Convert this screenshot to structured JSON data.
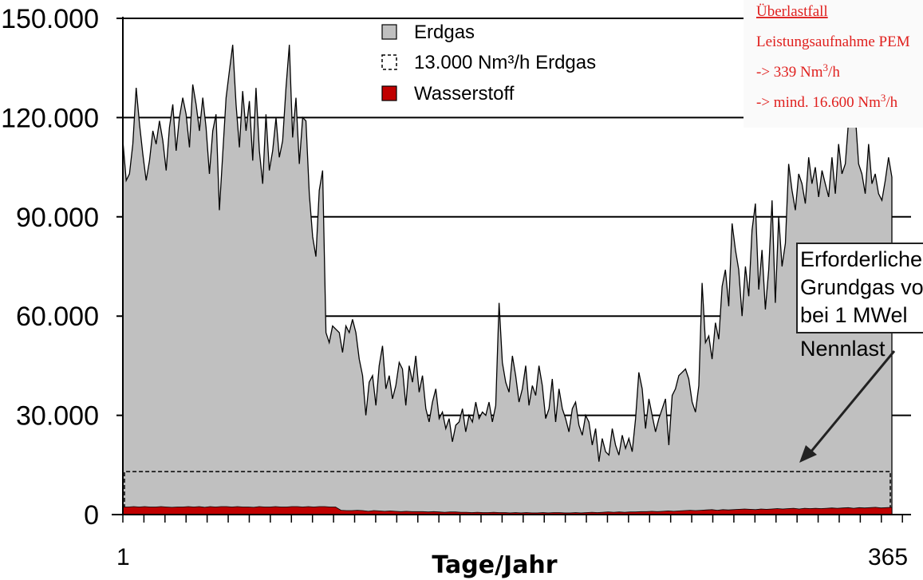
{
  "chart_data": {
    "type": "area",
    "xlabel": "Tage/Jahr",
    "x_ticks": [
      "1",
      "365"
    ],
    "x_range": [
      1,
      365
    ],
    "y_ticks": [
      "0",
      "30.000",
      "60.000",
      "90.000",
      "120.000",
      "150.000"
    ],
    "ylim": [
      0,
      150000
    ],
    "grid": "horizontal",
    "legend_position": "top-center",
    "series": [
      {
        "name": "Erdgas",
        "style": "gray-area",
        "color": "#c0c0c0",
        "values": [
          113000,
          101000,
          103000,
          112000,
          129000,
          118000,
          109000,
          101000,
          107000,
          116000,
          112000,
          119000,
          113000,
          104000,
          117000,
          124000,
          110000,
          120000,
          126000,
          121000,
          111000,
          130000,
          124000,
          116000,
          126000,
          117000,
          103000,
          116000,
          121000,
          92000,
          109000,
          126000,
          134000,
          142000,
          124000,
          111000,
          128000,
          116000,
          125000,
          107000,
          129000,
          110000,
          100000,
          121000,
          104000,
          110000,
          120000,
          108000,
          113000,
          129000,
          142000,
          114000,
          126000,
          106000,
          120000,
          119000,
          97000,
          84000,
          78000,
          98000,
          104000,
          55000,
          52000,
          57000,
          56000,
          55000,
          49000,
          57000,
          55000,
          59000,
          55000,
          47000,
          42000,
          30000,
          40000,
          42000,
          33000,
          45000,
          51000,
          38000,
          42000,
          35000,
          39000,
          46000,
          44000,
          33000,
          45000,
          40000,
          48000,
          37000,
          42000,
          32000,
          28000,
          34000,
          38000,
          29000,
          31000,
          26000,
          29000,
          22000,
          27000,
          28000,
          32000,
          25000,
          30000,
          28000,
          34000,
          29000,
          31000,
          30000,
          34000,
          28000,
          33000,
          64000,
          46000,
          40000,
          37000,
          48000,
          42000,
          34000,
          38000,
          45000,
          33000,
          39000,
          36000,
          45000,
          39000,
          29000,
          32000,
          41000,
          28000,
          38000,
          32000,
          29000,
          25000,
          32000,
          34000,
          27000,
          24000,
          30000,
          28000,
          21000,
          26000,
          16000,
          23000,
          19000,
          18000,
          26000,
          21000,
          18000,
          24000,
          20000,
          23000,
          19000,
          29000,
          43000,
          38000,
          26000,
          35000,
          30000,
          25000,
          29000,
          32000,
          35000,
          21000,
          36000,
          38000,
          42000,
          43000,
          44000,
          41000,
          34000,
          31000,
          39000,
          70000,
          52000,
          54000,
          47000,
          58000,
          53000,
          69000,
          74000,
          63000,
          88000,
          80000,
          74000,
          60000,
          75000,
          66000,
          86000,
          94000,
          68000,
          80000,
          62000,
          74000,
          95000,
          64000,
          90000,
          75000,
          82000,
          106000,
          98000,
          92000,
          103000,
          100000,
          94000,
          108000,
          100000,
          105000,
          96000,
          104000,
          100000,
          96000,
          108000,
          97000,
          112000,
          103000,
          106000,
          119000,
          118000,
          121000,
          106000,
          103000,
          97000,
          112000,
          100000,
          103000,
          97000,
          95000,
          101000,
          108000,
          102000
        ]
      },
      {
        "name": "13.000 Nm³/h Erdgas",
        "style": "dashed-line",
        "value": 13000
      },
      {
        "name": "Wasserstoff",
        "style": "red-area",
        "color": "#c00000",
        "values": [
          2300,
          2300,
          2400,
          2300,
          2400,
          2300,
          2300,
          2400,
          2300,
          2200,
          2300,
          2300,
          2400,
          2300,
          2400,
          2200,
          2400,
          2300,
          2400,
          2400,
          2300,
          2400,
          2300,
          2300,
          2200,
          2400,
          2300,
          2300,
          2400,
          2300,
          2300,
          2400,
          2400,
          2300,
          2400,
          2300,
          2400,
          2400,
          2300,
          2300,
          1300,
          1200,
          1200,
          1300,
          1200,
          1000,
          1200,
          1100,
          1000,
          1100,
          1000,
          900,
          1000,
          900,
          900,
          900,
          800,
          900,
          800,
          700,
          800,
          800,
          700,
          700,
          600,
          700,
          600,
          600,
          700,
          600,
          600,
          500,
          600,
          500,
          600,
          500,
          500,
          600,
          500,
          600,
          600,
          500,
          500,
          600,
          500,
          600,
          700,
          600,
          700,
          800,
          700,
          800,
          700,
          800,
          800,
          900,
          900,
          1000,
          900,
          1000,
          1100,
          1000,
          1100,
          1200,
          1300,
          1200,
          1300,
          1400,
          1500,
          1300,
          1500,
          1400,
          1500,
          1600,
          1700,
          1600,
          1500,
          1700,
          1600,
          1700,
          1800,
          1700,
          1800,
          1900,
          1700,
          1900,
          1800,
          1900,
          1800,
          1900,
          2000,
          1900,
          2000,
          2100,
          1900,
          2100,
          2000,
          2100,
          2200,
          2000,
          2100,
          2200
        ]
      }
    ],
    "annotations": {
      "overload_title": "Überlastfall",
      "overload_line1": "Leistungsaufnahme PEM",
      "overload_line2_prefix": "-> 339 Nm",
      "overload_line2_sup": "3",
      "overload_line2_suffix": "/h",
      "overload_line3_prefix": "-> mind. 16.600 Nm",
      "overload_line3_sup": "3",
      "overload_line3_suffix": "/h",
      "box_line1": "Erforderliches",
      "box_line2": "Grundgas von",
      "box_line3": "bei 1 MWel",
      "box_line4": "Nennlast"
    }
  }
}
